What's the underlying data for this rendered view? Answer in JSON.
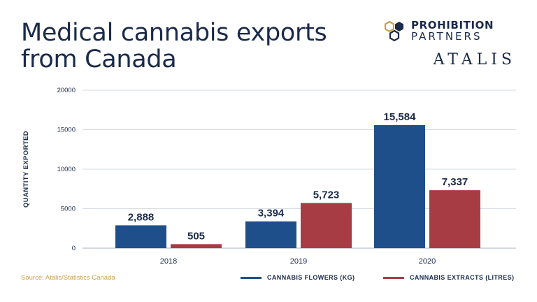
{
  "header": {
    "title_line1": "Medical cannabis exports",
    "title_line2": "from Canada"
  },
  "brand": {
    "partner_top": "PROHIBITION",
    "partner_bottom": "PARTNERS",
    "atalis": "ATALIS",
    "hex_color": "#c9a050",
    "navy": "#1a2a4a"
  },
  "source": "Source: Atalis/Statistics Canada",
  "chart_data": {
    "type": "bar",
    "title": "Medical cannabis exports from Canada",
    "xlabel": "",
    "ylabel": "QUANTITY EXPORTED",
    "ylim": [
      0,
      20000
    ],
    "yticks": [
      0,
      5000,
      10000,
      15000,
      20000
    ],
    "ytick_labels": [
      "0",
      "5000",
      "10000",
      "15000",
      "20000"
    ],
    "grid": true,
    "categories": [
      "2018",
      "2019",
      "2020"
    ],
    "series": [
      {
        "name": "CANNABIS FLOWERS (KG)",
        "color": "#1f4f8b",
        "values": [
          2888,
          3394,
          15584
        ],
        "labels": [
          "2,888",
          "3,394",
          "15,584"
        ]
      },
      {
        "name": "CANNABIS EXTRACTS (LITRES)",
        "color": "#a83c45",
        "values": [
          505,
          5723,
          7337
        ],
        "labels": [
          "505",
          "5,723",
          "7,337"
        ]
      }
    ],
    "legend_position": "bottom-right"
  }
}
